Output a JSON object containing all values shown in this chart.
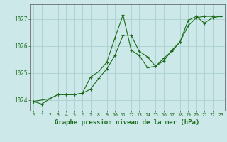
{
  "background_color": "#cce8e8",
  "grid_color": "#aad0d0",
  "line_color": "#1a6b1a",
  "xlabel": "Graphe pression niveau de la mer (hPa)",
  "xlabel_fontsize": 6.5,
  "ylabel_ticks": [
    1024,
    1025,
    1026,
    1027
  ],
  "xlim": [
    -0.5,
    23.5
  ],
  "ylim": [
    1023.6,
    1027.55
  ],
  "xticks": [
    0,
    1,
    2,
    3,
    4,
    5,
    6,
    7,
    8,
    9,
    10,
    11,
    12,
    13,
    14,
    15,
    16,
    17,
    18,
    19,
    20,
    21,
    22,
    23
  ],
  "series1_x": [
    0,
    1,
    2,
    3,
    4,
    5,
    6,
    7,
    8,
    9,
    10,
    11,
    12,
    13,
    14,
    15,
    16,
    17,
    18,
    19,
    20,
    21,
    22,
    23
  ],
  "series1_y": [
    1023.95,
    1023.85,
    1024.05,
    1024.2,
    1024.2,
    1024.2,
    1024.25,
    1024.85,
    1025.05,
    1025.4,
    1026.3,
    1027.15,
    1025.85,
    1025.65,
    1025.2,
    1025.25,
    1025.55,
    1025.8,
    1026.15,
    1026.95,
    1027.1,
    1026.85,
    1027.05,
    1027.1
  ],
  "series2_x": [
    0,
    2,
    3,
    4,
    5,
    6,
    7,
    8,
    9,
    10,
    11,
    12,
    13,
    14,
    15,
    16,
    17,
    18,
    19,
    20,
    21,
    22,
    23
  ],
  "series2_y": [
    1023.95,
    1024.05,
    1024.2,
    1024.2,
    1024.2,
    1024.25,
    1024.4,
    1024.8,
    1025.15,
    1025.65,
    1026.4,
    1026.4,
    1025.8,
    1025.6,
    1025.25,
    1025.45,
    1025.85,
    1026.15,
    1026.75,
    1027.05,
    1027.1,
    1027.1,
    1027.1
  ]
}
